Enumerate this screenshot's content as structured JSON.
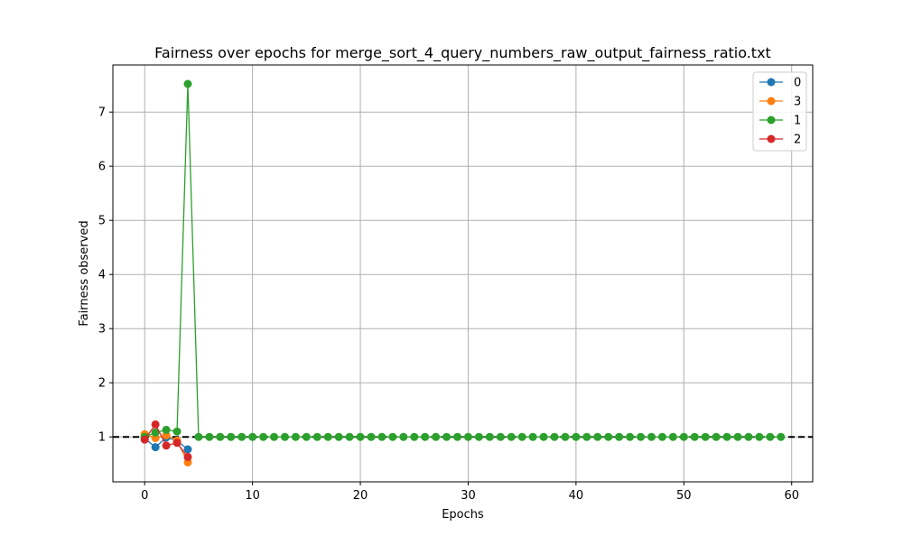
{
  "chart_data": {
    "type": "line",
    "title": "Fairness over epochs for merge_sort_4_query_numbers_raw_output_fairness_ratio.txt",
    "xlabel": "Epochs",
    "ylabel": "Fairness observed",
    "xlim": [
      -2.95,
      61.95
    ],
    "ylim": [
      0.17,
      7.87
    ],
    "xticks": [
      0,
      10,
      20,
      30,
      40,
      50,
      60
    ],
    "yticks": [
      1,
      2,
      3,
      4,
      5,
      6,
      7
    ],
    "grid": true,
    "legend_position": "top-right",
    "reference_line": {
      "y": 1,
      "style": "dashed",
      "color": "#000000"
    },
    "series": [
      {
        "name": "0",
        "color": "#1f77b4",
        "x": [
          0,
          1,
          2,
          3,
          4
        ],
        "y": [
          0.97,
          0.81,
          0.99,
          0.93,
          0.77
        ]
      },
      {
        "name": "3",
        "color": "#ff7f0e",
        "x": [
          0,
          1,
          2,
          3,
          4
        ],
        "y": [
          1.05,
          0.98,
          1.03,
          0.93,
          0.53
        ]
      },
      {
        "name": "1",
        "color": "#2ca02c",
        "x": [
          0,
          1,
          2,
          3,
          4,
          5,
          6,
          7,
          8,
          9,
          10,
          11,
          12,
          13,
          14,
          15,
          16,
          17,
          18,
          19,
          20,
          21,
          22,
          23,
          24,
          25,
          26,
          27,
          28,
          29,
          30,
          31,
          32,
          33,
          34,
          35,
          36,
          37,
          38,
          39,
          40,
          41,
          42,
          43,
          44,
          45,
          46,
          47,
          48,
          49,
          50,
          51,
          52,
          53,
          54,
          55,
          56,
          57,
          58,
          59
        ],
        "y": [
          1.0,
          1.08,
          1.13,
          1.1,
          7.52,
          1.0,
          1.0,
          1.0,
          1.0,
          1.0,
          1.0,
          1.0,
          1.0,
          1.0,
          1.0,
          1.0,
          1.0,
          1.0,
          1.0,
          1.0,
          1.0,
          1.0,
          1.0,
          1.0,
          1.0,
          1.0,
          1.0,
          1.0,
          1.0,
          1.0,
          1.0,
          1.0,
          1.0,
          1.0,
          1.0,
          1.0,
          1.0,
          1.0,
          1.0,
          1.0,
          1.0,
          1.0,
          1.0,
          1.0,
          1.0,
          1.0,
          1.0,
          1.0,
          1.0,
          1.0,
          1.0,
          1.0,
          1.0,
          1.0,
          1.0,
          1.0,
          1.0,
          1.0,
          1.0,
          1.0
        ]
      },
      {
        "name": "2",
        "color": "#d62728",
        "x": [
          0,
          1,
          2,
          3,
          4
        ],
        "y": [
          0.95,
          1.23,
          0.84,
          0.89,
          0.63
        ]
      }
    ]
  }
}
